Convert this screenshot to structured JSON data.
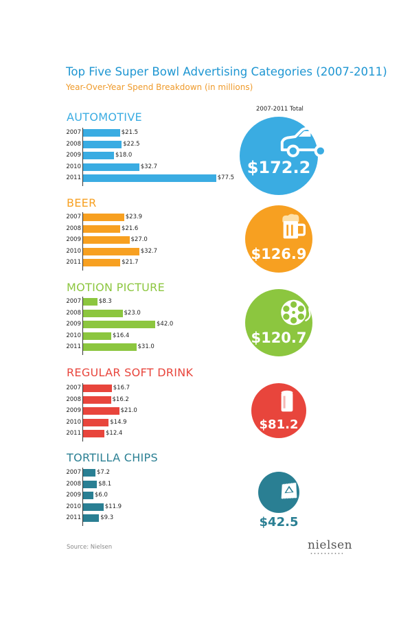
{
  "chart_data": {
    "type": "bar",
    "orientation": "horizontal",
    "title": "Top Five Super Bowl Advertising Categories (2007-2011)",
    "subtitle": "Year-Over-Year Spend Breakdown (in millions)",
    "total_header": "2007-2011 Total",
    "categories": [
      "2007",
      "2008",
      "2009",
      "2010",
      "2011"
    ],
    "series": [
      {
        "name": "AUTOMOTIVE",
        "key": "automotive",
        "color": "#3aace2",
        "icon": "car-icon",
        "values": [
          21.5,
          22.5,
          18.0,
          32.7,
          77.5
        ],
        "labels": [
          "$21.5",
          "$22.5",
          "$18.0",
          "$32.7",
          "$77.5"
        ],
        "total": "$172.2"
      },
      {
        "name": "BEER",
        "key": "beer",
        "color": "#f7a021",
        "icon": "beer-mug-icon",
        "values": [
          23.9,
          21.6,
          27.0,
          32.7,
          21.7
        ],
        "labels": [
          "$23.9",
          "$21.6",
          "$27.0",
          "$32.7",
          "$21.7"
        ],
        "total": "$126.9"
      },
      {
        "name": "MOTION PICTURE",
        "key": "motion",
        "color": "#8cc63f",
        "icon": "film-reel-icon",
        "values": [
          8.3,
          23.0,
          42.0,
          16.4,
          31.0
        ],
        "labels": [
          "$8.3",
          "$23.0",
          "$42.0",
          "$16.4",
          "$31.0"
        ],
        "total": "$120.7"
      },
      {
        "name": "REGULAR SOFT DRINK",
        "key": "soda",
        "color": "#e8453c",
        "icon": "soda-can-icon",
        "values": [
          16.7,
          16.2,
          21.0,
          14.9,
          12.4
        ],
        "labels": [
          "$16.7",
          "$16.2",
          "$21.0",
          "$14.9",
          "$12.4"
        ],
        "total": "$81.2"
      },
      {
        "name": "TORTILLA CHIPS",
        "key": "chips",
        "color": "#2a7f93",
        "icon": "chip-bag-icon",
        "values": [
          7.2,
          8.1,
          6.0,
          11.9,
          9.3
        ],
        "labels": [
          "$7.2",
          "$8.1",
          "$6.0",
          "$11.9",
          "$9.3"
        ],
        "total": "$42.5"
      }
    ]
  },
  "source": "Source: Nielsen",
  "logo_text": "nielsen"
}
